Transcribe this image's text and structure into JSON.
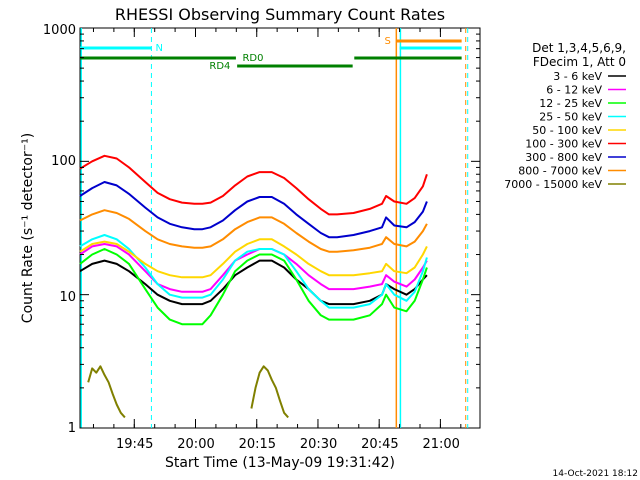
{
  "chart_data": {
    "type": "line",
    "title": "RHESSI Observing Summary Count Rates",
    "xlabel": "Start Time (13-May-09 19:31:42)",
    "ylabel": "Count Rate (s⁻¹ detector⁻¹)",
    "yscale": "log",
    "ylim": [
      1,
      1000
    ],
    "xlim_minutes": [
      0,
      98
    ],
    "x_tick_labels": [
      "19:45",
      "20:00",
      "20:15",
      "20:30",
      "20:45",
      "21:00"
    ],
    "y_tick_labels": [
      "1",
      "10",
      "100",
      "1000"
    ],
    "footer_date": "14-Oct-2021 18:12",
    "legend": {
      "header_lines": [
        "Det 1,3,4,5,6,9,",
        "FDecim 1, Att 0"
      ],
      "items": [
        {
          "label": "3 - 6 keV",
          "color": "#000000"
        },
        {
          "label": "6 - 12 keV",
          "color": "#ff00ff"
        },
        {
          "label": "12 - 25 keV",
          "color": "#00ff00"
        },
        {
          "label": "25 - 50 keV",
          "color": "#00ffff"
        },
        {
          "label": "50 - 100 keV",
          "color": "#ffd700"
        },
        {
          "label": "100 - 300 keV",
          "color": "#ff0000"
        },
        {
          "label": "300 - 800 keV",
          "color": "#0000cc"
        },
        {
          "label": "800 - 7000 keV",
          "color": "#ff8c00"
        },
        {
          "label": "7000 - 15000 keV",
          "color": "#808000"
        }
      ]
    },
    "series": [
      {
        "name": "3 - 6 keV",
        "color": "#000000",
        "points": [
          [
            0,
            15
          ],
          [
            3,
            17
          ],
          [
            6,
            18
          ],
          [
            9,
            17
          ],
          [
            12,
            15
          ],
          [
            16,
            12
          ],
          [
            19,
            10
          ],
          [
            22,
            9
          ],
          [
            25,
            8.5
          ],
          [
            28,
            8.5
          ],
          [
            30,
            8.5
          ],
          [
            32,
            9
          ],
          [
            35,
            11
          ],
          [
            38,
            14
          ],
          [
            41,
            16
          ],
          [
            44,
            18
          ],
          [
            47,
            18
          ],
          [
            50,
            16
          ],
          [
            53,
            13
          ],
          [
            56,
            11
          ],
          [
            59,
            9
          ],
          [
            61,
            8.5
          ],
          [
            63,
            8.5
          ],
          [
            67,
            8.5
          ],
          [
            71,
            9
          ],
          [
            74,
            10
          ],
          [
            75,
            12
          ],
          [
            77,
            11
          ],
          [
            80,
            10
          ],
          [
            82,
            11
          ],
          [
            84,
            13
          ],
          [
            85,
            14
          ]
        ]
      },
      {
        "name": "6 - 12 keV",
        "color": "#ff00ff",
        "points": [
          [
            0,
            20
          ],
          [
            3,
            23
          ],
          [
            6,
            24
          ],
          [
            9,
            23
          ],
          [
            12,
            20
          ],
          [
            16,
            15
          ],
          [
            19,
            12
          ],
          [
            22,
            11
          ],
          [
            25,
            10.5
          ],
          [
            28,
            10.5
          ],
          [
            30,
            10.5
          ],
          [
            32,
            11
          ],
          [
            35,
            14
          ],
          [
            38,
            18
          ],
          [
            41,
            20
          ],
          [
            44,
            22
          ],
          [
            47,
            22
          ],
          [
            50,
            20
          ],
          [
            53,
            17
          ],
          [
            56,
            14
          ],
          [
            59,
            12
          ],
          [
            61,
            11
          ],
          [
            63,
            11
          ],
          [
            67,
            11
          ],
          [
            71,
            11.5
          ],
          [
            74,
            12
          ],
          [
            75,
            14
          ],
          [
            77,
            12.5
          ],
          [
            80,
            11.5
          ],
          [
            82,
            13
          ],
          [
            84,
            16
          ],
          [
            85,
            18
          ]
        ]
      },
      {
        "name": "12 - 25 keV",
        "color": "#00ff00",
        "points": [
          [
            0,
            17
          ],
          [
            3,
            20
          ],
          [
            6,
            22
          ],
          [
            9,
            20
          ],
          [
            12,
            17
          ],
          [
            16,
            11
          ],
          [
            19,
            8
          ],
          [
            22,
            6.5
          ],
          [
            25,
            6
          ],
          [
            28,
            6
          ],
          [
            30,
            6
          ],
          [
            32,
            7
          ],
          [
            35,
            10
          ],
          [
            38,
            15
          ],
          [
            41,
            18
          ],
          [
            44,
            20
          ],
          [
            47,
            20
          ],
          [
            50,
            18
          ],
          [
            53,
            13
          ],
          [
            56,
            9
          ],
          [
            59,
            7
          ],
          [
            61,
            6.5
          ],
          [
            63,
            6.5
          ],
          [
            67,
            6.5
          ],
          [
            71,
            7
          ],
          [
            74,
            8.5
          ],
          [
            75,
            10
          ],
          [
            77,
            8
          ],
          [
            80,
            7.5
          ],
          [
            82,
            9
          ],
          [
            84,
            13
          ],
          [
            85,
            16
          ]
        ]
      },
      {
        "name": "25 - 50 keV",
        "color": "#00ffff",
        "points": [
          [
            0,
            23
          ],
          [
            3,
            26
          ],
          [
            6,
            28
          ],
          [
            9,
            26
          ],
          [
            12,
            22
          ],
          [
            16,
            16
          ],
          [
            19,
            12
          ],
          [
            22,
            10
          ],
          [
            25,
            9.5
          ],
          [
            28,
            9.5
          ],
          [
            30,
            9.5
          ],
          [
            32,
            10
          ],
          [
            35,
            13
          ],
          [
            38,
            18
          ],
          [
            41,
            21
          ],
          [
            44,
            22
          ],
          [
            47,
            22
          ],
          [
            50,
            20
          ],
          [
            53,
            15
          ],
          [
            56,
            11
          ],
          [
            59,
            9
          ],
          [
            61,
            8
          ],
          [
            63,
            8
          ],
          [
            67,
            8
          ],
          [
            71,
            8.5
          ],
          [
            74,
            10
          ],
          [
            75,
            12
          ],
          [
            77,
            10
          ],
          [
            80,
            9
          ],
          [
            82,
            10.5
          ],
          [
            84,
            15
          ],
          [
            85,
            19
          ]
        ]
      },
      {
        "name": "50 - 100 keV",
        "color": "#ffd700",
        "points": [
          [
            0,
            21
          ],
          [
            3,
            24
          ],
          [
            6,
            25
          ],
          [
            9,
            24
          ],
          [
            12,
            21
          ],
          [
            16,
            17
          ],
          [
            19,
            15
          ],
          [
            22,
            14
          ],
          [
            25,
            13.5
          ],
          [
            28,
            13.5
          ],
          [
            30,
            13.5
          ],
          [
            32,
            14
          ],
          [
            35,
            17
          ],
          [
            38,
            21
          ],
          [
            41,
            24
          ],
          [
            44,
            26
          ],
          [
            47,
            26
          ],
          [
            50,
            23
          ],
          [
            53,
            20
          ],
          [
            56,
            17
          ],
          [
            59,
            15
          ],
          [
            61,
            14
          ],
          [
            63,
            14
          ],
          [
            67,
            14
          ],
          [
            71,
            14.5
          ],
          [
            74,
            15
          ],
          [
            75,
            17
          ],
          [
            77,
            15
          ],
          [
            80,
            14.5
          ],
          [
            82,
            16
          ],
          [
            84,
            20
          ],
          [
            85,
            23
          ]
        ]
      },
      {
        "name": "100 - 300 keV",
        "color": "#ff0000",
        "points": [
          [
            0,
            88
          ],
          [
            3,
            100
          ],
          [
            6,
            110
          ],
          [
            9,
            105
          ],
          [
            12,
            90
          ],
          [
            16,
            70
          ],
          [
            19,
            58
          ],
          [
            22,
            52
          ],
          [
            25,
            49
          ],
          [
            28,
            48
          ],
          [
            30,
            48
          ],
          [
            32,
            49
          ],
          [
            35,
            55
          ],
          [
            38,
            66
          ],
          [
            41,
            77
          ],
          [
            44,
            83
          ],
          [
            47,
            83
          ],
          [
            50,
            75
          ],
          [
            53,
            63
          ],
          [
            56,
            52
          ],
          [
            59,
            44
          ],
          [
            61,
            40
          ],
          [
            63,
            40
          ],
          [
            67,
            41
          ],
          [
            71,
            44
          ],
          [
            74,
            48
          ],
          [
            75,
            55
          ],
          [
            77,
            50
          ],
          [
            80,
            48
          ],
          [
            82,
            53
          ],
          [
            84,
            65
          ],
          [
            85,
            80
          ]
        ]
      },
      {
        "name": "300 - 800 keV",
        "color": "#0000cc",
        "points": [
          [
            0,
            55
          ],
          [
            3,
            63
          ],
          [
            6,
            70
          ],
          [
            9,
            66
          ],
          [
            12,
            57
          ],
          [
            16,
            45
          ],
          [
            19,
            38
          ],
          [
            22,
            34
          ],
          [
            25,
            32
          ],
          [
            28,
            31
          ],
          [
            30,
            31
          ],
          [
            32,
            32
          ],
          [
            35,
            36
          ],
          [
            38,
            43
          ],
          [
            41,
            50
          ],
          [
            44,
            54
          ],
          [
            47,
            54
          ],
          [
            50,
            48
          ],
          [
            53,
            40
          ],
          [
            56,
            34
          ],
          [
            59,
            29
          ],
          [
            61,
            27
          ],
          [
            63,
            27
          ],
          [
            67,
            28
          ],
          [
            71,
            30
          ],
          [
            74,
            32
          ],
          [
            75,
            38
          ],
          [
            77,
            33
          ],
          [
            80,
            32
          ],
          [
            82,
            35
          ],
          [
            84,
            42
          ],
          [
            85,
            50
          ]
        ]
      },
      {
        "name": "800 - 7000 keV",
        "color": "#ff8c00",
        "points": [
          [
            0,
            36
          ],
          [
            3,
            40
          ],
          [
            6,
            43
          ],
          [
            9,
            41
          ],
          [
            12,
            37
          ],
          [
            16,
            30
          ],
          [
            19,
            26
          ],
          [
            22,
            24
          ],
          [
            25,
            23
          ],
          [
            28,
            22.5
          ],
          [
            30,
            22.5
          ],
          [
            32,
            23
          ],
          [
            35,
            26
          ],
          [
            38,
            31
          ],
          [
            41,
            35
          ],
          [
            44,
            38
          ],
          [
            47,
            38
          ],
          [
            50,
            34
          ],
          [
            53,
            29
          ],
          [
            56,
            25
          ],
          [
            59,
            22
          ],
          [
            61,
            21
          ],
          [
            63,
            21
          ],
          [
            67,
            21.5
          ],
          [
            71,
            22.5
          ],
          [
            74,
            24
          ],
          [
            75,
            27
          ],
          [
            77,
            24
          ],
          [
            80,
            23
          ],
          [
            82,
            25
          ],
          [
            84,
            30
          ],
          [
            85,
            34
          ]
        ]
      },
      {
        "name": "7000 - 15000 keV",
        "color": "#808000",
        "points": [
          [
            2,
            2.2
          ],
          [
            3,
            2.8
          ],
          [
            4,
            2.6
          ],
          [
            5,
            2.9
          ],
          [
            6,
            2.5
          ],
          [
            7,
            2.2
          ],
          [
            8,
            1.8
          ],
          [
            9,
            1.5
          ],
          [
            10,
            1.3
          ],
          [
            11,
            1.2
          ],
          [
            42,
            1.4
          ],
          [
            43,
            2.0
          ],
          [
            44,
            2.6
          ],
          [
            45,
            2.9
          ],
          [
            46,
            2.7
          ],
          [
            47,
            2.3
          ],
          [
            48,
            2.0
          ],
          [
            49,
            1.6
          ],
          [
            50,
            1.3
          ],
          [
            51,
            1.2
          ]
        ]
      }
    ],
    "annotations": {
      "bar_labels": [
        "N",
        "RD0",
        "RD4",
        "S"
      ],
      "vlines_minutes": [
        0.3,
        17.5,
        77.5,
        78.5,
        94.5
      ]
    }
  }
}
